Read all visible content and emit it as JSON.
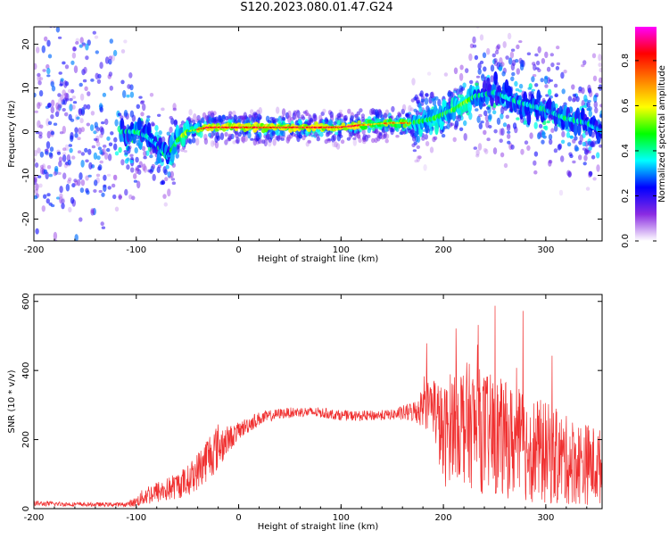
{
  "title": "S120.2023.080.01.47.G24",
  "chart_data": [
    {
      "type": "heatmap",
      "xlabel": "Height of straight line (km)",
      "ylabel": "Frequency (Hz)",
      "xlim": [
        -200,
        355
      ],
      "ylim": [
        -25,
        24
      ],
      "xticks": [
        -200,
        -100,
        0,
        100,
        200,
        300
      ],
      "yticks": [
        -20,
        -10,
        0,
        10,
        20
      ],
      "colorbar": {
        "label": "Normalized spectral amplitude",
        "range": [
          0.0,
          0.95
        ],
        "ticks": [
          "0.0",
          "0.2",
          "0.4",
          "0.6",
          "0.8"
        ],
        "colors": [
          "#ffffff",
          "#8a2be2",
          "#0000ff",
          "#00ffff",
          "#00ff00",
          "#ffff00",
          "#ff8000",
          "#ff0000",
          "#ff00ff"
        ]
      },
      "ridge": {
        "x": [
          -200,
          -150,
          -120,
          -100,
          -90,
          -80,
          -70,
          -60,
          -50,
          -30,
          0,
          50,
          100,
          120,
          150,
          170,
          190,
          210,
          230,
          250,
          270,
          300,
          320,
          340,
          355
        ],
        "y": [
          0,
          0,
          0,
          0,
          -1,
          -3,
          -6,
          -2,
          0,
          1,
          1,
          1,
          1,
          1.5,
          2,
          2,
          3,
          5,
          8,
          9,
          7,
          5,
          3,
          2,
          0
        ]
      }
    },
    {
      "type": "line",
      "xlabel": "Height of straight line (km)",
      "ylabel": "SNR (10 * v/v)",
      "xlim": [
        -200,
        355
      ],
      "ylim": [
        0,
        620
      ],
      "xticks": [
        -200,
        -100,
        0,
        100,
        200,
        300
      ],
      "yticks": [
        0,
        200,
        400,
        600
      ],
      "color": "#f03030",
      "envelope": {
        "x": [
          -200,
          -150,
          -110,
          -100,
          -90,
          -70,
          -50,
          -40,
          -30,
          -20,
          -10,
          0,
          10,
          20,
          40,
          60,
          80,
          100,
          120,
          150,
          170,
          190,
          200,
          210,
          220,
          240,
          260,
          280,
          300,
          320,
          340,
          355
        ],
        "mean": [
          15,
          12,
          12,
          20,
          40,
          55,
          80,
          110,
          150,
          180,
          200,
          225,
          245,
          260,
          275,
          280,
          278,
          270,
          268,
          272,
          280,
          310,
          200,
          260,
          250,
          220,
          200,
          180,
          160,
          140,
          130,
          120
        ],
        "spread": [
          8,
          6,
          6,
          15,
          30,
          35,
          45,
          55,
          70,
          70,
          40,
          25,
          25,
          20,
          15,
          15,
          15,
          15,
          15,
          15,
          30,
          90,
          150,
          160,
          180,
          180,
          170,
          160,
          150,
          130,
          120,
          110
        ]
      }
    }
  ]
}
